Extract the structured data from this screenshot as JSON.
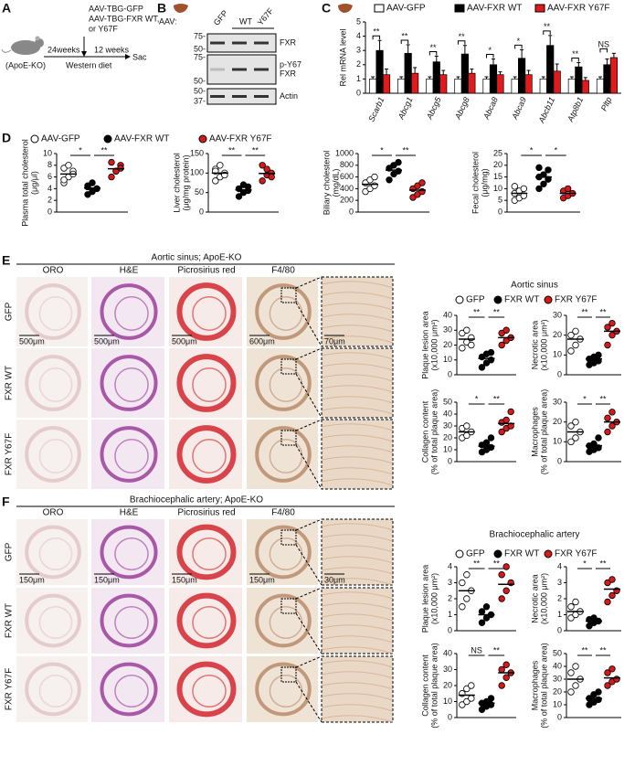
{
  "panel_a": {
    "letter": "A",
    "treatment": [
      "AAV-TBG-GFP",
      "AAV-TBG-FXR WT,",
      "or Y67F"
    ],
    "mouse": "(ApoE-KO)",
    "age": "24weeks",
    "duration": "12 weeks",
    "diet": "Western diet",
    "end": "Sac"
  },
  "panel_b": {
    "letter": "B",
    "aav": "AAV:",
    "lanes": [
      "GFP",
      "WT",
      "Y67F"
    ],
    "blots": [
      {
        "label": [
          "FXR"
        ],
        "markers": [
          "75-",
          "50-"
        ]
      },
      {
        "label": [
          "p-Y67",
          "FXR"
        ],
        "markers": [
          "75-",
          "50-"
        ]
      },
      {
        "label": [
          "Actin"
        ],
        "markers": [
          "50-",
          "37-"
        ]
      }
    ]
  },
  "panel_c": {
    "letter": "C"
  },
  "panel_d": {
    "letter": "D",
    "legend": [
      {
        "name": "AAV-GFP",
        "color": "#ffffff"
      },
      {
        "name": "AAV-FXR WT",
        "color": "#000000"
      },
      {
        "name": "AAV-FXR Y67F",
        "color": "#d7191c"
      }
    ]
  },
  "panel_e": {
    "letter": "E",
    "title": "Aortic sinus; ApoE-KO",
    "columns": [
      "ORO",
      "H&E",
      "Picrosirius red",
      "F4/80"
    ],
    "rows": [
      "GFP",
      "FXR WT",
      "FXR Y67F"
    ],
    "scale_bars": [
      "500μm",
      "500μm",
      "500μm",
      "600μm",
      "70μm"
    ],
    "plots_title": "Aortic sinus",
    "legend": [
      {
        "name": "GFP",
        "color": "#ffffff"
      },
      {
        "name": "FXR WT",
        "color": "#000000"
      },
      {
        "name": "FXR Y67F",
        "color": "#d7191c"
      }
    ]
  },
  "panel_f": {
    "letter": "F",
    "title": "Brachiocephalic artery; ApoE-KO",
    "columns": [
      "ORO",
      "H&E",
      "Picrosirius red",
      "F4/80"
    ],
    "rows": [
      "GFP",
      "FXR WT",
      "FXR Y67F"
    ],
    "scale_bars": [
      "150μm",
      "150μm",
      "150μm",
      "150μm",
      "30μm"
    ],
    "plots_title": "Brachiocephalic artery",
    "legend": [
      {
        "name": "GFP",
        "color": "#ffffff"
      },
      {
        "name": "FXR WT",
        "color": "#000000"
      },
      {
        "name": "FXR Y67F",
        "color": "#d7191c"
      }
    ]
  },
  "chart_data": [
    {
      "type": "bar",
      "ylabel": [
        "Rel mRNA level"
      ],
      "categories": [
        "Scarb1",
        "Abcg1",
        "Abcg5",
        "Abcg8",
        "Abca8",
        "Abca9",
        "Abcb11",
        "Atp8b1",
        "Pltp"
      ],
      "ylim": [
        0,
        5
      ],
      "yticks": [
        0,
        1,
        2,
        3,
        4,
        5
      ],
      "series": [
        {
          "name": "AAV-GFP",
          "color": "#ffffff",
          "values": [
            1,
            1,
            1,
            1,
            1,
            1,
            1,
            1,
            1
          ],
          "errors": [
            0.15,
            0.15,
            0.15,
            0.15,
            0.15,
            0.15,
            0.15,
            0.15,
            0.15
          ]
        },
        {
          "name": "AAV-FXR WT",
          "color": "#000000",
          "values": [
            3.0,
            2.8,
            2.2,
            2.75,
            2.0,
            2.45,
            3.35,
            1.85,
            2.0
          ],
          "errors": [
            0.7,
            0.6,
            0.4,
            0.6,
            0.4,
            0.6,
            0.7,
            0.3,
            0.4
          ]
        },
        {
          "name": "AAV-FXR Y67F",
          "color": "#e31a1c",
          "values": [
            1.3,
            1.4,
            1.3,
            1.4,
            1.3,
            1.3,
            1.55,
            0.9,
            2.5
          ],
          "errors": [
            0.4,
            0.4,
            0.3,
            0.3,
            0.2,
            0.3,
            0.5,
            0.2,
            0.3
          ]
        }
      ],
      "significance": [
        "**",
        "**",
        "**",
        "**",
        "*",
        "*",
        "**",
        "**",
        "NS"
      ]
    },
    {
      "type": "strip",
      "ylabel": [
        "Plasma total cholesterol",
        "(μg/μl)"
      ],
      "ylim": [
        0,
        10
      ],
      "yticks": [
        0,
        2,
        4,
        6,
        8,
        10
      ],
      "significance": [
        "*",
        "**"
      ],
      "series": [
        {
          "color": "#ffffff",
          "values": [
            5,
            6,
            7,
            7.5,
            8,
            6.5,
            5.5
          ],
          "mean": 6.5
        },
        {
          "color": "#000000",
          "values": [
            3,
            3.5,
            4,
            4.5,
            5,
            4,
            4.3
          ],
          "mean": 4.1
        },
        {
          "color": "#d7191c",
          "values": [
            6,
            7,
            8,
            8.5,
            7,
            7.5
          ],
          "mean": 7.4
        }
      ]
    },
    {
      "type": "strip",
      "ylabel": [
        "Liver cholesterol",
        "(μg/mg protein)"
      ],
      "ylim": [
        0,
        150
      ],
      "yticks": [
        0,
        50,
        100,
        150
      ],
      "significance": [
        "**",
        "**"
      ],
      "series": [
        {
          "color": "#ffffff",
          "values": [
            80,
            90,
            100,
            110,
            120,
            95,
            105
          ],
          "mean": 100
        },
        {
          "color": "#000000",
          "values": [
            40,
            50,
            55,
            60,
            70,
            65
          ],
          "mean": 57
        },
        {
          "color": "#d7191c",
          "values": [
            80,
            95,
            100,
            120,
            110,
            90
          ],
          "mean": 99
        }
      ]
    },
    {
      "type": "strip",
      "ylabel": [
        "Biliary cholesterol",
        "(mg/dL)"
      ],
      "ylim": [
        0,
        1000
      ],
      "yticks": [
        0,
        200,
        400,
        600,
        800,
        1000
      ],
      "significance": [
        "*",
        "**"
      ],
      "series": [
        {
          "color": "#ffffff",
          "values": [
            350,
            400,
            450,
            500,
            550,
            600
          ],
          "mean": 475
        },
        {
          "color": "#000000",
          "values": [
            550,
            650,
            700,
            750,
            800,
            850
          ],
          "mean": 717
        },
        {
          "color": "#d7191c",
          "values": [
            250,
            300,
            350,
            400,
            450,
            500
          ],
          "mean": 375
        }
      ]
    },
    {
      "type": "strip",
      "ylabel": [
        "Fecal cholesterol",
        "(μg/mg)"
      ],
      "ylim": [
        0,
        25
      ],
      "yticks": [
        0,
        5,
        10,
        15,
        20,
        25
      ],
      "significance": [
        "*",
        "*"
      ],
      "series": [
        {
          "color": "#ffffff",
          "values": [
            5,
            6,
            7,
            8,
            9,
            10,
            11
          ],
          "mean": 8
        },
        {
          "color": "#000000",
          "values": [
            10,
            12,
            14,
            15,
            16,
            18,
            19
          ],
          "mean": 15
        },
        {
          "color": "#d7191c",
          "values": [
            6,
            7,
            8,
            9,
            10
          ],
          "mean": 8
        }
      ]
    },
    {
      "type": "strip",
      "ylabel": [
        "Plaque lesion area",
        "(x10,000 μm²)"
      ],
      "ylim": [
        0,
        40
      ],
      "yticks": [
        0,
        10,
        20,
        30,
        40
      ],
      "significance": [
        "**",
        "**"
      ],
      "series": [
        {
          "color": "#ffffff",
          "values": [
            18,
            22,
            25,
            28,
            30,
            20
          ],
          "mean": 24
        },
        {
          "color": "#000000",
          "values": [
            5,
            8,
            10,
            12,
            14,
            15
          ],
          "mean": 11
        },
        {
          "color": "#d7191c",
          "values": [
            20,
            23,
            25,
            28,
            30
          ],
          "mean": 25
        }
      ]
    },
    {
      "type": "strip",
      "ylabel": [
        "Necrotic area",
        "(x10,000 μm²)"
      ],
      "ylim": [
        0,
        30
      ],
      "yticks": [
        0,
        10,
        20,
        30
      ],
      "significance": [
        "**",
        "**"
      ],
      "series": [
        {
          "color": "#ffffff",
          "values": [
            12,
            15,
            18,
            20,
            22
          ],
          "mean": 18
        },
        {
          "color": "#000000",
          "values": [
            5,
            6,
            7,
            8,
            9,
            10
          ],
          "mean": 8
        },
        {
          "color": "#d7191c",
          "values": [
            15,
            20,
            22,
            24,
            26
          ],
          "mean": 22
        }
      ]
    },
    {
      "type": "strip",
      "ylabel": [
        "Collagen content",
        "(% of total plaque area)"
      ],
      "ylim": [
        0,
        50
      ],
      "yticks": [
        0,
        10,
        20,
        30,
        40,
        50
      ],
      "significance": [
        "*",
        "**"
      ],
      "series": [
        {
          "color": "#ffffff",
          "values": [
            20,
            22,
            25,
            28,
            30
          ],
          "mean": 25
        },
        {
          "color": "#000000",
          "values": [
            8,
            10,
            12,
            14,
            16,
            20
          ],
          "mean": 13
        },
        {
          "color": "#d7191c",
          "values": [
            25,
            28,
            30,
            33,
            35,
            42
          ],
          "mean": 32
        }
      ]
    },
    {
      "type": "strip",
      "ylabel": [
        "Macrophages",
        "(% of total plaque area)"
      ],
      "ylim": [
        0,
        30
      ],
      "yticks": [
        0,
        10,
        20,
        30
      ],
      "significance": [
        "*",
        "**"
      ],
      "series": [
        {
          "color": "#ffffff",
          "values": [
            10,
            12,
            15,
            18,
            20
          ],
          "mean": 15
        },
        {
          "color": "#000000",
          "values": [
            5,
            6,
            7,
            8,
            9,
            12
          ],
          "mean": 8
        },
        {
          "color": "#d7191c",
          "values": [
            15,
            18,
            20,
            22,
            25
          ],
          "mean": 20
        }
      ]
    },
    {
      "type": "strip",
      "ylabel": [
        "Plaque lesion area",
        "(x10,000 μm²)"
      ],
      "ylim": [
        0,
        4
      ],
      "yticks": [
        0,
        1,
        2,
        3,
        4
      ],
      "significance": [
        "**",
        "**"
      ],
      "series": [
        {
          "color": "#ffffff",
          "values": [
            1.5,
            2,
            2.5,
            3,
            3.5
          ],
          "mean": 2.5
        },
        {
          "color": "#000000",
          "values": [
            0.5,
            0.8,
            1,
            1.2,
            1.5
          ],
          "mean": 1
        },
        {
          "color": "#d7191c",
          "values": [
            2,
            2.5,
            3,
            3.5,
            4
          ],
          "mean": 2.9
        }
      ]
    },
    {
      "type": "strip",
      "ylabel": [
        "Necrotic area",
        "(x10,000 μm²)"
      ],
      "ylim": [
        0,
        4
      ],
      "yticks": [
        0,
        1,
        2,
        3,
        4
      ],
      "significance": [
        "*",
        "**"
      ],
      "series": [
        {
          "color": "#ffffff",
          "values": [
            0.8,
            1,
            1.2,
            1.5,
            1.8
          ],
          "mean": 1.2
        },
        {
          "color": "#000000",
          "values": [
            0.3,
            0.5,
            0.6,
            0.7,
            0.8
          ],
          "mean": 0.6
        },
        {
          "color": "#d7191c",
          "values": [
            1.8,
            2.2,
            2.5,
            3,
            3.2
          ],
          "mean": 2.6
        }
      ]
    },
    {
      "type": "strip",
      "ylabel": [
        "Collagen content",
        "(% of total plaque area)"
      ],
      "ylim": [
        0,
        40
      ],
      "yticks": [
        0,
        10,
        20,
        30,
        40
      ],
      "significance": [
        "NS",
        "**"
      ],
      "series": [
        {
          "color": "#ffffff",
          "values": [
            8,
            10,
            12,
            15,
            18,
            20
          ],
          "mean": 14
        },
        {
          "color": "#000000",
          "values": [
            5,
            7,
            8,
            9,
            10,
            12
          ],
          "mean": 9
        },
        {
          "color": "#d7191c",
          "values": [
            20,
            25,
            28,
            30,
            33
          ],
          "mean": 28
        }
      ]
    },
    {
      "type": "strip",
      "ylabel": [
        "Macrophages",
        "(% of total plaque area)"
      ],
      "ylim": [
        0,
        50
      ],
      "yticks": [
        0,
        10,
        20,
        30,
        40,
        50
      ],
      "significance": [
        "**",
        "**"
      ],
      "series": [
        {
          "color": "#ffffff",
          "values": [
            20,
            25,
            30,
            35,
            40
          ],
          "mean": 30
        },
        {
          "color": "#000000",
          "values": [
            10,
            12,
            14,
            15,
            18,
            20
          ],
          "mean": 15
        },
        {
          "color": "#d7191c",
          "values": [
            25,
            28,
            30,
            35,
            38
          ],
          "mean": 31
        }
      ]
    }
  ]
}
